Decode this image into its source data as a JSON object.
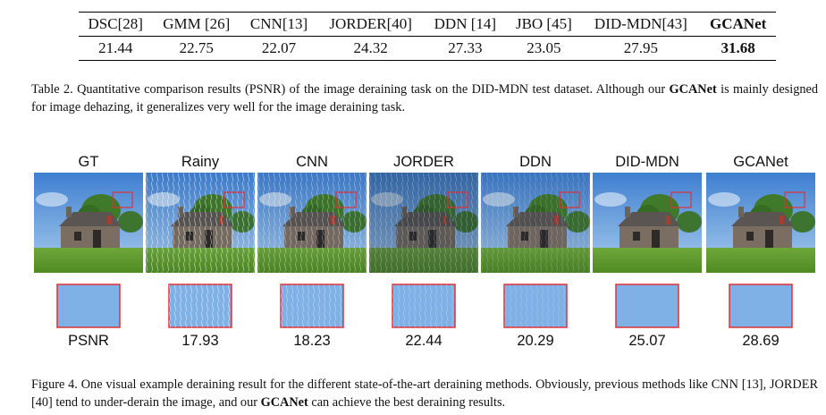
{
  "table": {
    "headers": [
      "DSC[28]",
      "GMM [26]",
      "CNN[13]",
      "JORDER[40]",
      "DDN [14]",
      "JBO [45]",
      "DID-MDN[43]",
      "GCANet"
    ],
    "values": [
      21.44,
      22.75,
      22.07,
      24.32,
      27.33,
      23.05,
      27.95,
      31.68
    ]
  },
  "table_caption": {
    "before": "Table 2. Quantitative comparison results (PSNR) of the image deraining task on the DID-MDN test dataset. Although our ",
    "bold": "GCANet",
    "after": " is mainly designed for image dehazing, it generalizes very well for the image deraining task."
  },
  "figure": {
    "columns": [
      "GT",
      "Rainy",
      "CNN",
      "JORDER",
      "DDN",
      "DID-MDN",
      "GCANet"
    ],
    "psnr_label": "PSNR",
    "psnr": [
      17.93,
      18.23,
      22.44,
      20.29,
      25.07,
      28.69
    ]
  },
  "figure_caption": {
    "before": "Figure 4. One visual example deraining result for the different state-of-the-art deraining methods. Obviously, previous methods like CNN [13], JORDER [40] tend to under-derain the image, and our ",
    "bold": "GCANet",
    "after": " can achieve the best deraining results."
  }
}
